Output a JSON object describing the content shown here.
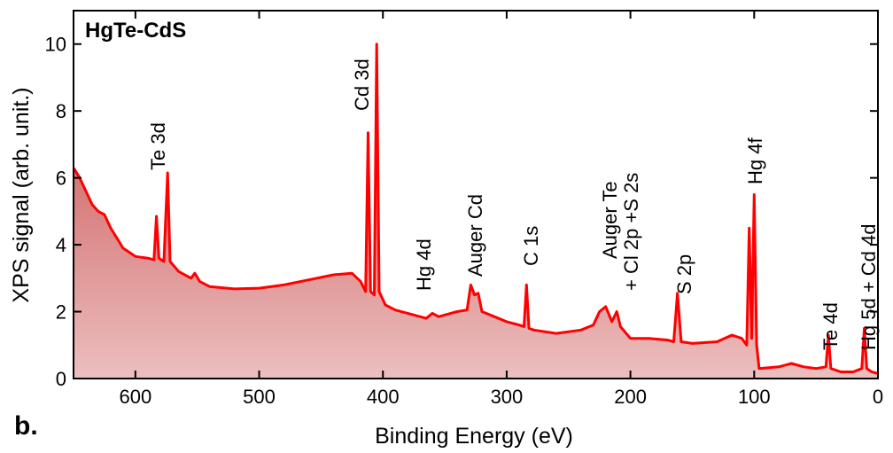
{
  "chart_data": {
    "type": "line",
    "title": "HgTe-CdS",
    "panel_label": "b.",
    "x_label": "Binding Energy (eV)",
    "y_label": "XPS signal (arb. unit.)",
    "xlim": [
      650,
      0
    ],
    "ylim": [
      0,
      11
    ],
    "xticks": [
      600,
      500,
      400,
      300,
      200,
      100,
      0
    ],
    "yticks": [
      0,
      2,
      4,
      6,
      8,
      10
    ],
    "x": [
      650,
      645,
      640,
      635,
      630,
      625,
      620,
      615,
      610,
      600,
      590,
      585,
      583,
      581,
      577,
      574,
      572,
      565,
      555,
      552,
      548,
      540,
      520,
      500,
      480,
      460,
      440,
      425,
      418,
      414,
      412,
      410,
      407,
      405,
      403,
      398,
      390,
      380,
      370,
      365,
      360,
      355,
      340,
      332,
      329,
      326,
      323,
      320,
      310,
      300,
      290,
      286,
      284,
      282,
      278,
      260,
      240,
      230,
      225,
      220,
      215,
      211,
      208,
      200,
      185,
      170,
      165,
      162,
      159,
      150,
      130,
      118,
      110,
      106,
      104,
      102,
      100,
      98,
      96,
      80,
      70,
      60,
      50,
      42,
      40,
      38,
      30,
      20,
      13,
      11,
      9,
      5,
      0
    ],
    "series": [
      {
        "name": "HgTe-CdS",
        "color": "#ff0000",
        "fill": "#c84848",
        "values": [
          6.3,
          6.0,
          5.6,
          5.2,
          5.0,
          4.9,
          4.5,
          4.2,
          3.9,
          3.65,
          3.6,
          3.55,
          4.85,
          3.6,
          3.5,
          6.15,
          3.5,
          3.2,
          3.0,
          3.15,
          2.9,
          2.75,
          2.68,
          2.7,
          2.8,
          2.95,
          3.1,
          3.15,
          2.9,
          2.6,
          7.35,
          2.6,
          2.5,
          10.0,
          2.6,
          2.2,
          2.05,
          1.95,
          1.85,
          1.8,
          1.95,
          1.85,
          2.0,
          2.05,
          2.8,
          2.5,
          2.55,
          2.0,
          1.85,
          1.7,
          1.6,
          1.55,
          2.8,
          1.5,
          1.45,
          1.35,
          1.45,
          1.6,
          2.0,
          2.15,
          1.7,
          2.0,
          1.55,
          1.2,
          1.2,
          1.15,
          1.1,
          2.55,
          1.1,
          1.05,
          1.1,
          1.3,
          1.2,
          1.0,
          4.5,
          1.2,
          5.5,
          1.0,
          0.3,
          0.35,
          0.45,
          0.35,
          0.3,
          0.35,
          1.3,
          0.3,
          0.2,
          0.2,
          0.3,
          1.5,
          0.3,
          0.2,
          0.15
        ]
      }
    ],
    "annotations": [
      "Te 3d",
      "Cd 3d",
      "Hg 4d",
      "Auger Cd",
      "C 1s",
      "Auger Te",
      "+ Cl 2p +S 2s",
      "S 2p",
      "Hg 4f",
      "Te 4d",
      "Hg 5d + Cd 4d"
    ]
  }
}
